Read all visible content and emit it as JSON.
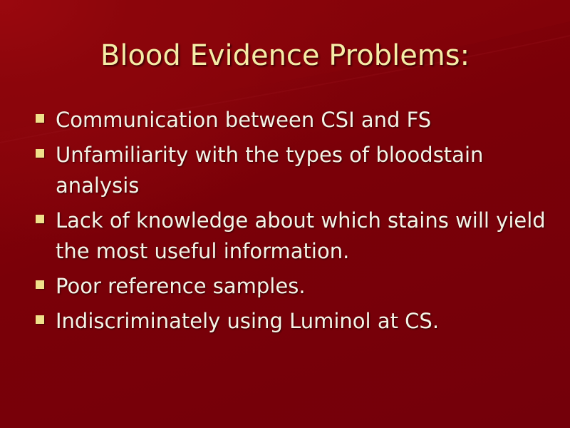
{
  "slide": {
    "title": "Blood Evidence Problems:",
    "bullet_icon": "square-bullet-icon",
    "colors": {
      "background": "#7a0008",
      "title_text": "#f5eca6",
      "body_text": "#f5f3e6",
      "bullet": "#f0e08a"
    },
    "bullets": [
      "Communication between CSI and FS",
      "Unfamiliarity with the types of bloodstain analysis",
      "Lack of knowledge about which stains will yield the most useful information.",
      "Poor reference samples.",
      "Indiscriminately using Luminol at CS."
    ]
  }
}
